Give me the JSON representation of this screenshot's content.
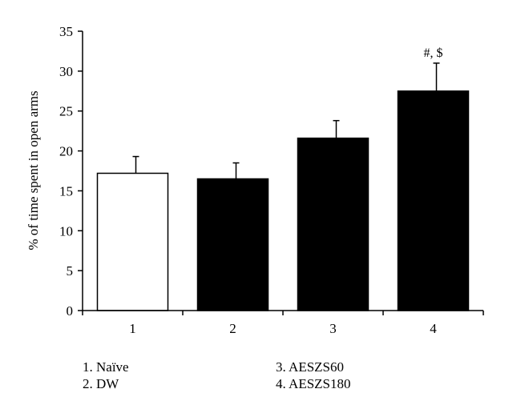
{
  "chart_data": {
    "type": "bar",
    "categories": [
      "1",
      "2",
      "3",
      "4"
    ],
    "values": [
      17.2,
      16.5,
      21.6,
      27.5
    ],
    "errors": [
      2.1,
      2.0,
      2.2,
      3.5
    ],
    "fills": [
      "#ffffff",
      "#000000",
      "#000000",
      "#000000"
    ],
    "ylabel": "% of time spent in open arms",
    "xlabel": "",
    "ylim": [
      0,
      35
    ],
    "yticks": [
      0,
      5,
      10,
      15,
      20,
      25,
      30,
      35
    ],
    "annotations": [
      {
        "category": "4",
        "text": "#, $"
      }
    ],
    "grid": false
  },
  "legend": {
    "col1": [
      "1. Naïve",
      "2. DW"
    ],
    "col2": [
      "3. AESZS60",
      "4. AESZS180"
    ]
  }
}
